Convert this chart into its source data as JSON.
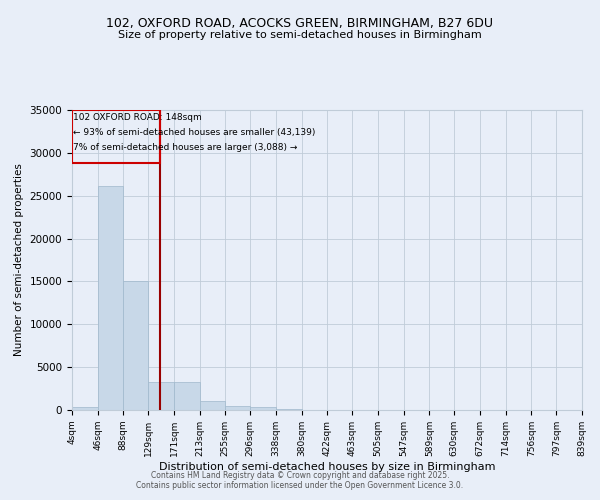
{
  "title_line1": "102, OXFORD ROAD, ACOCKS GREEN, BIRMINGHAM, B27 6DU",
  "title_line2": "Size of property relative to semi-detached houses in Birmingham",
  "xlabel": "Distribution of semi-detached houses by size in Birmingham",
  "ylabel": "Number of semi-detached properties",
  "property_label": "102 OXFORD ROAD: 148sqm",
  "annotation_line1": "← 93% of semi-detached houses are smaller (43,139)",
  "annotation_line2": "7% of semi-detached houses are larger (3,088) →",
  "bin_edges": [
    4,
    46,
    88,
    129,
    171,
    213,
    255,
    296,
    338,
    380,
    422,
    463,
    505,
    547,
    589,
    630,
    672,
    714,
    756,
    797,
    839
  ],
  "bin_labels": [
    "4sqm",
    "46sqm",
    "88sqm",
    "129sqm",
    "171sqm",
    "213sqm",
    "255sqm",
    "296sqm",
    "338sqm",
    "380sqm",
    "422sqm",
    "463sqm",
    "505sqm",
    "547sqm",
    "589sqm",
    "630sqm",
    "672sqm",
    "714sqm",
    "756sqm",
    "797sqm",
    "839sqm"
  ],
  "bar_heights": [
    400,
    26100,
    15100,
    3300,
    3300,
    1000,
    500,
    300,
    100,
    50,
    20,
    10,
    5,
    3,
    2,
    1,
    1,
    0,
    0,
    0
  ],
  "bar_color": "#c8d8e8",
  "bar_edge_color": "#a0b8cc",
  "vline_color": "#990000",
  "vline_x": 148,
  "ylim": [
    0,
    35000
  ],
  "yticks": [
    0,
    5000,
    10000,
    15000,
    20000,
    25000,
    30000,
    35000
  ],
  "background_color": "#e8eef8",
  "grid_color": "#c0ccd8",
  "box_color": "#cc0000",
  "title_fontsize": 9,
  "subtitle_fontsize": 8,
  "footnote1": "Contains HM Land Registry data © Crown copyright and database right 2025.",
  "footnote2": "Contains public sector information licensed under the Open Government Licence 3.0."
}
